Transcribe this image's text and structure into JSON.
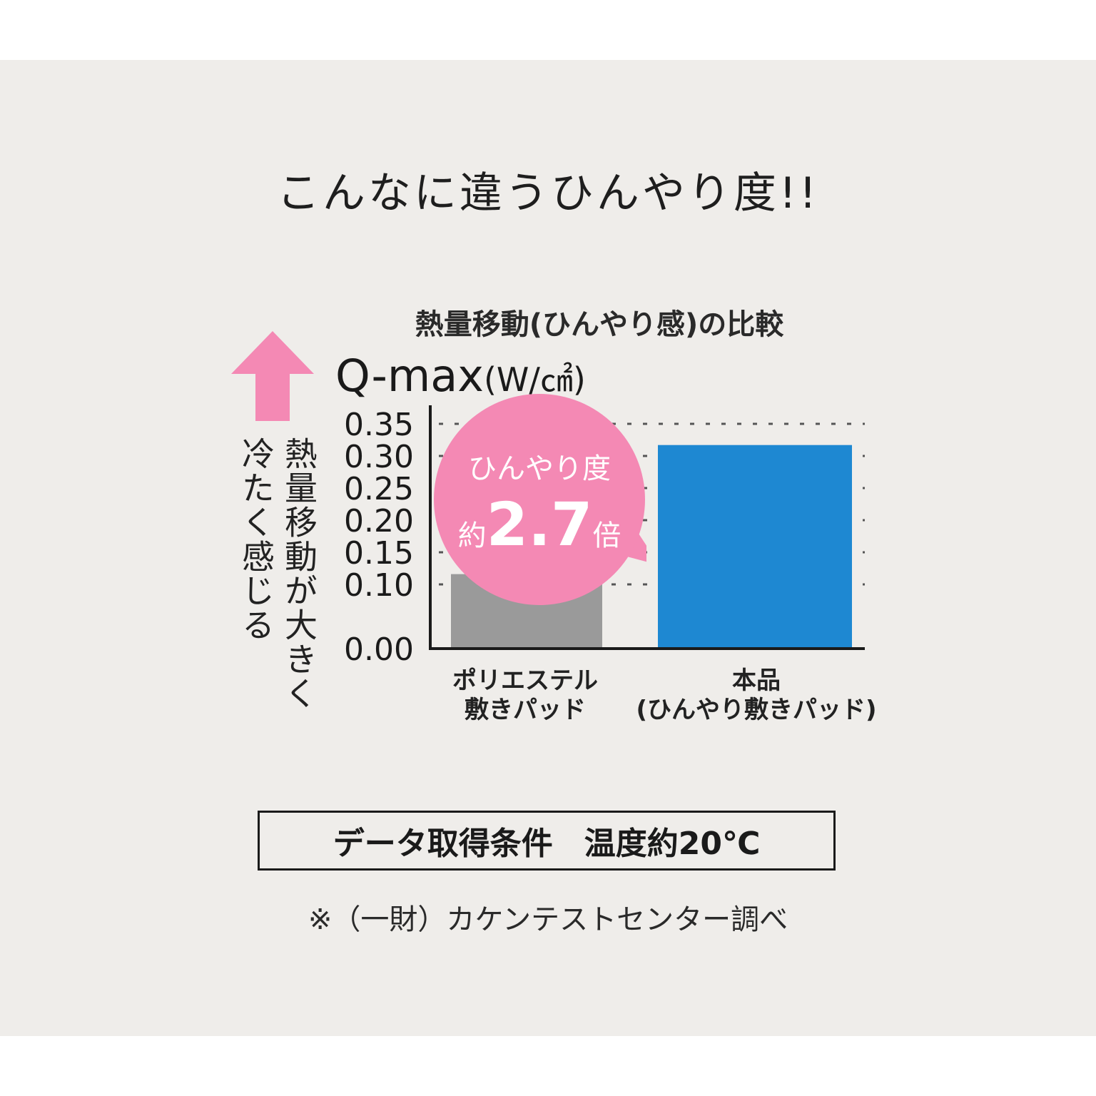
{
  "headline": "こんなに違うひんやり度!!",
  "chart_data": {
    "type": "bar",
    "title": "熱量移動(ひんやり感)の比較",
    "ylabel_main": "Q-max",
    "ylabel_unit": "(W/㎠)",
    "categories": [
      "ポリエステル\n敷きパッド",
      "本品\n(ひんやり敷きパッド)"
    ],
    "values": [
      0.116,
      0.317
    ],
    "colors": [
      "#9a9a9a",
      "#1e88d2"
    ],
    "ylim": [
      0,
      0.35
    ],
    "yticks": [
      "0.35",
      "0.30",
      "0.25",
      "0.20",
      "0.15",
      "0.10",
      "0.00"
    ],
    "ytick_values": [
      0.35,
      0.3,
      0.25,
      0.2,
      0.15,
      0.1,
      0.0
    ],
    "grid": "dotted",
    "annotation": {
      "line1": "ひんやり度",
      "prefix": "約",
      "value": "2.7",
      "suffix": "倍",
      "color": "#f489b4"
    }
  },
  "side_note": {
    "right": "熱量移動が大きく",
    "left": "冷たく感じる",
    "arrow_color": "#f489b4"
  },
  "condition": "データ取得条件　温度約20℃",
  "source": "※（一財）カケンテストセンター調べ"
}
